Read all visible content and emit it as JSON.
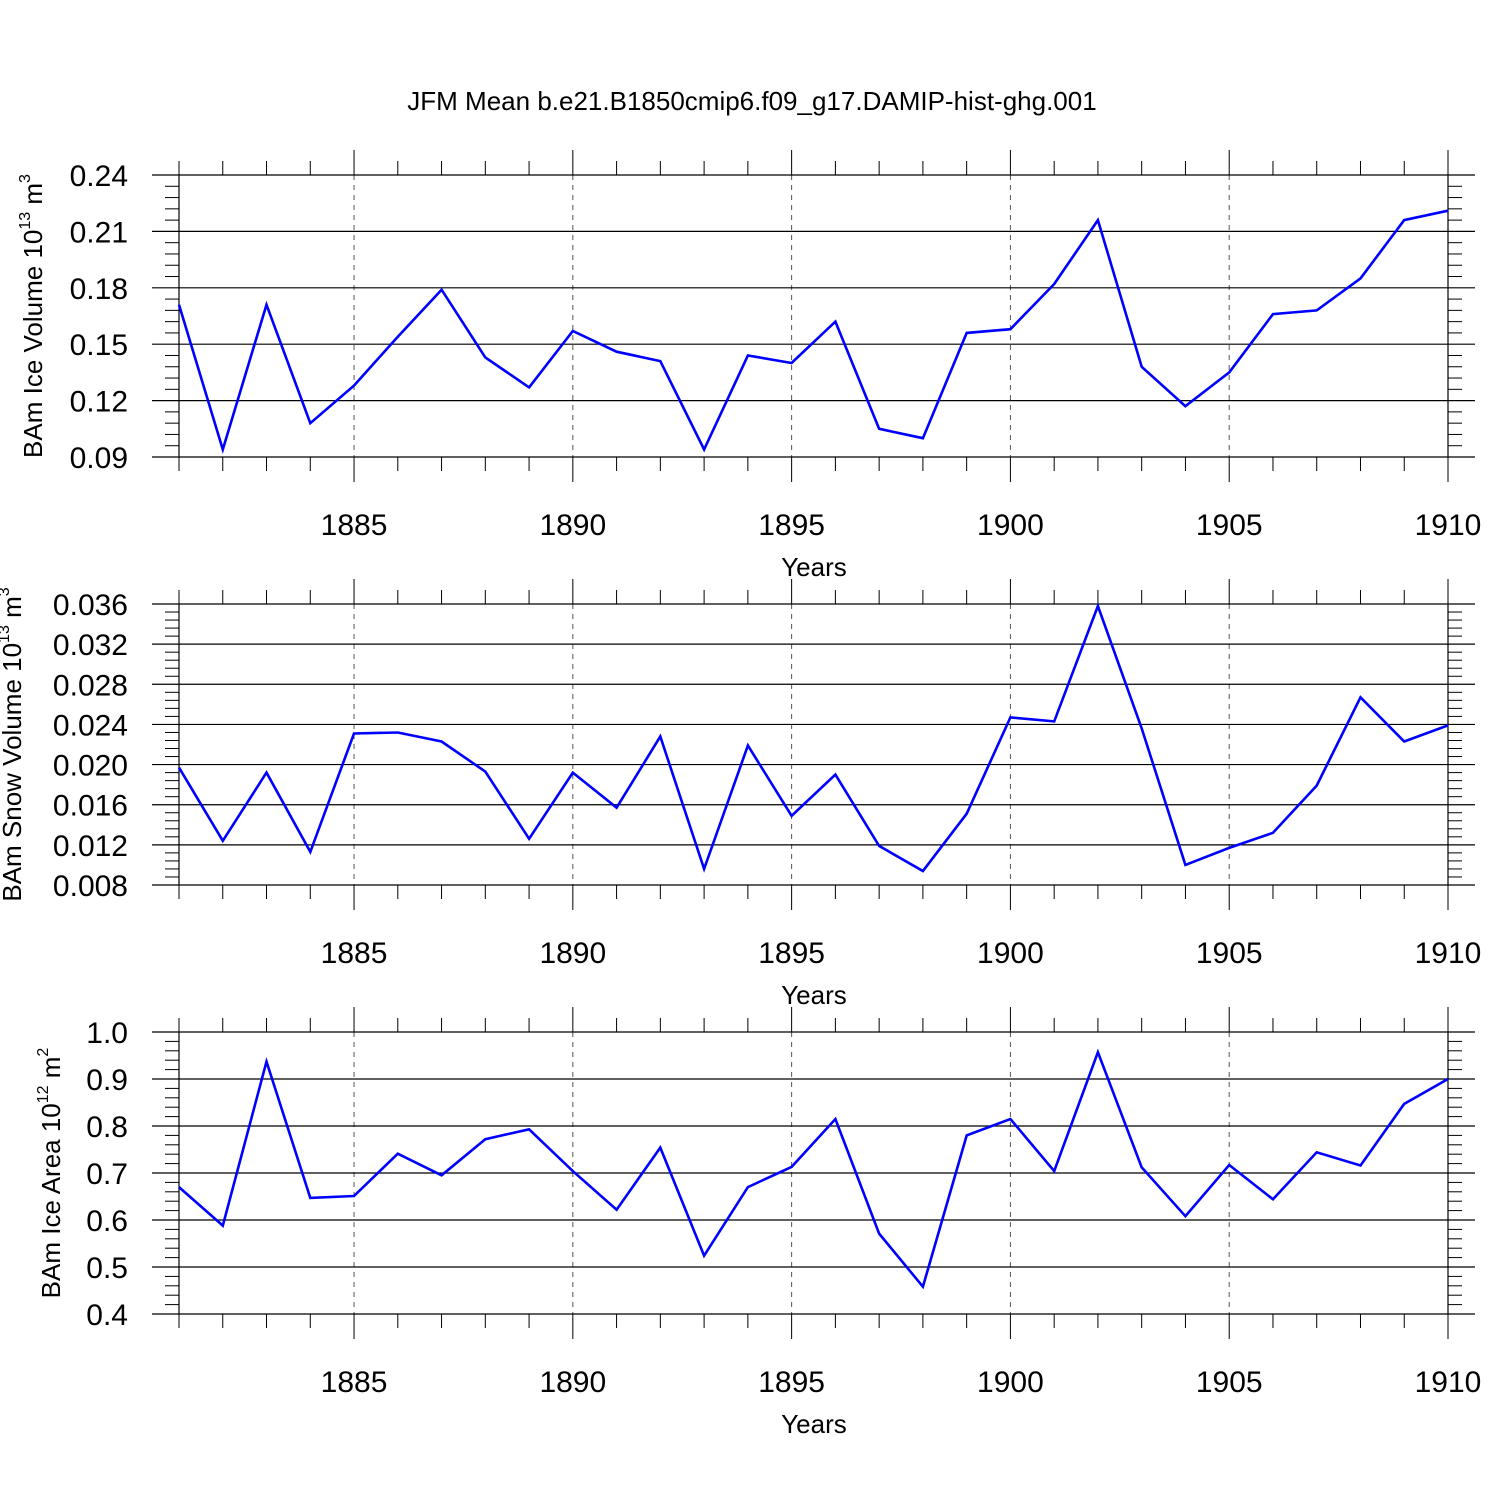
{
  "figure": {
    "title": "JFM Mean b.e21.B1850cmip6.f09_g17.DAMIP-hist-ghg.001",
    "line_color": "#0000ff"
  },
  "chart_data": [
    {
      "type": "line",
      "ylabel_main": "BAm Ice Volume 10",
      "ylabel_exp": "13",
      "ylabel_unit": " m",
      "ylabel_unit_exp": "3",
      "xlabel": "Years",
      "xlim": [
        1881,
        1910
      ],
      "ylim": [
        0.09,
        0.24
      ],
      "yticks": [
        "0.09",
        "0.12",
        "0.15",
        "0.18",
        "0.21",
        "0.24"
      ],
      "xticks": [
        "1885",
        "1890",
        "1895",
        "1900",
        "1905",
        "1910"
      ],
      "x": [
        1881,
        1882,
        1883,
        1884,
        1885,
        1886,
        1887,
        1888,
        1889,
        1890,
        1891,
        1892,
        1893,
        1894,
        1895,
        1896,
        1897,
        1898,
        1899,
        1900,
        1901,
        1902,
        1903,
        1904,
        1905,
        1906,
        1907,
        1908,
        1909,
        1910
      ],
      "values": [
        0.171,
        0.094,
        0.171,
        0.108,
        0.128,
        0.154,
        0.179,
        0.143,
        0.127,
        0.157,
        0.146,
        0.141,
        0.094,
        0.144,
        0.14,
        0.162,
        0.105,
        0.1,
        0.156,
        0.158,
        0.182,
        0.216,
        0.138,
        0.117,
        0.135,
        0.166,
        0.168,
        0.185,
        0.216,
        0.221
      ]
    },
    {
      "type": "line",
      "ylabel_main": "BAm Snow Volume 10",
      "ylabel_exp": "13",
      "ylabel_unit": " m",
      "ylabel_unit_exp": "3",
      "xlabel": "Years",
      "xlim": [
        1881,
        1910
      ],
      "ylim": [
        0.008,
        0.036
      ],
      "yticks": [
        "0.008",
        "0.012",
        "0.016",
        "0.020",
        "0.024",
        "0.028",
        "0.032",
        "0.036"
      ],
      "xticks": [
        "1885",
        "1890",
        "1895",
        "1900",
        "1905",
        "1910"
      ],
      "x": [
        1881,
        1882,
        1883,
        1884,
        1885,
        1886,
        1887,
        1888,
        1889,
        1890,
        1891,
        1892,
        1893,
        1894,
        1895,
        1896,
        1897,
        1898,
        1899,
        1900,
        1901,
        1902,
        1903,
        1904,
        1905,
        1906,
        1907,
        1908,
        1909,
        1910
      ],
      "values": [
        0.0197,
        0.0124,
        0.0192,
        0.0113,
        0.0231,
        0.0232,
        0.0223,
        0.0193,
        0.0126,
        0.0192,
        0.0157,
        0.0228,
        0.0096,
        0.0219,
        0.0149,
        0.019,
        0.0119,
        0.0094,
        0.0151,
        0.0247,
        0.0243,
        0.0358,
        0.0236,
        0.01,
        0.0117,
        0.0132,
        0.0179,
        0.0267,
        0.0223,
        0.0239
      ]
    },
    {
      "type": "line",
      "ylabel_main": "BAm Ice Area 10",
      "ylabel_exp": "12",
      "ylabel_unit": " m",
      "ylabel_unit_exp": "2",
      "xlabel": "Years",
      "xlim": [
        1881,
        1910
      ],
      "ylim": [
        0.4,
        1.0
      ],
      "yticks": [
        "0.4",
        "0.5",
        "0.6",
        "0.7",
        "0.8",
        "0.9",
        "1.0"
      ],
      "xticks": [
        "1885",
        "1890",
        "1895",
        "1900",
        "1905",
        "1910"
      ],
      "x": [
        1881,
        1882,
        1883,
        1884,
        1885,
        1886,
        1887,
        1888,
        1889,
        1890,
        1891,
        1892,
        1893,
        1894,
        1895,
        1896,
        1897,
        1898,
        1899,
        1900,
        1901,
        1902,
        1903,
        1904,
        1905,
        1906,
        1907,
        1908,
        1909,
        1910
      ],
      "values": [
        0.67,
        0.588,
        0.937,
        0.647,
        0.651,
        0.741,
        0.695,
        0.772,
        0.793,
        0.704,
        0.622,
        0.754,
        0.524,
        0.67,
        0.713,
        0.815,
        0.571,
        0.458,
        0.78,
        0.815,
        0.704,
        0.957,
        0.712,
        0.608,
        0.717,
        0.644,
        0.744,
        0.716,
        0.847,
        0.9
      ]
    }
  ]
}
